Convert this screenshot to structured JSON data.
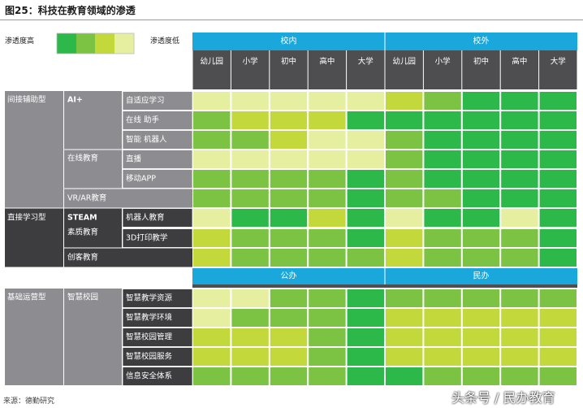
{
  "title": "图25：科技在教育领域的渗透",
  "legend": {
    "high_label": "渗透度高",
    "low_label": "渗透度低",
    "colors": [
      "#2db84a",
      "#7cc243",
      "#c3d83a",
      "#e6eea0"
    ]
  },
  "chart_data": {
    "type": "heatmap",
    "title": "图25：科技在教育领域的渗透",
    "scale": {
      "levels": 4,
      "1": "渗透度高",
      "4": "渗透度低"
    },
    "level_colors": {
      "1": "#2db84a",
      "2": "#7cc243",
      "3": "#c3d83a",
      "4": "#e6eea0"
    },
    "column_groups_top": [
      "校内",
      "校外"
    ],
    "column_groups_bottom": [
      "公办",
      "民办"
    ],
    "columns": [
      "幼儿园",
      "小学",
      "初中",
      "高中",
      "大学",
      "幼儿园",
      "小学",
      "初中",
      "高中",
      "大学"
    ],
    "rows": [
      {
        "category": "间接辅助型",
        "sub": "AI+",
        "item": "自适应学习",
        "values": [
          4,
          4,
          4,
          4,
          4,
          3,
          2,
          1,
          1,
          1
        ]
      },
      {
        "category": "间接辅助型",
        "sub": "AI+",
        "item": "在线助手",
        "values": [
          2,
          3,
          3,
          3,
          1,
          1,
          1,
          1,
          1,
          1
        ]
      },
      {
        "category": "间接辅助型",
        "sub": "AI+",
        "item": "智能机器人",
        "values": [
          2,
          2,
          3,
          4,
          4,
          2,
          1,
          1,
          1,
          1
        ]
      },
      {
        "category": "间接辅助型",
        "sub": "在线教育",
        "item": "直播",
        "values": [
          4,
          4,
          4,
          4,
          4,
          2,
          1,
          1,
          1,
          1
        ]
      },
      {
        "category": "间接辅助型",
        "sub": "在线教育",
        "item": "移动APP",
        "values": [
          2,
          2,
          2,
          2,
          1,
          2,
          1,
          1,
          1,
          1
        ]
      },
      {
        "category": "间接辅助型",
        "sub": "VR/AR教育",
        "item": "",
        "values": [
          2,
          2,
          2,
          2,
          1,
          2,
          2,
          1,
          1,
          1
        ]
      },
      {
        "category": "直接学习型",
        "sub": "STEAM 素质教育",
        "item": "机器人教育",
        "values": [
          4,
          1,
          1,
          3,
          1,
          4,
          1,
          1,
          4,
          1
        ]
      },
      {
        "category": "直接学习型",
        "sub": "STEAM 素质教育",
        "item": "3D打印教学",
        "values": [
          3,
          2,
          2,
          2,
          1,
          3,
          2,
          2,
          2,
          1
        ]
      },
      {
        "category": "直接学习型",
        "sub": "创客教育",
        "item": "",
        "values": [
          3,
          2,
          2,
          2,
          2,
          3,
          2,
          2,
          2,
          1
        ]
      },
      {
        "category": "基础运营型",
        "sub": "智慧校园",
        "item": "智慧教学资源",
        "values": [
          4,
          4,
          2,
          2,
          1,
          2,
          2,
          2,
          2,
          2
        ]
      },
      {
        "category": "基础运营型",
        "sub": "智慧校园",
        "item": "智慧教学环境",
        "values": [
          4,
          2,
          2,
          2,
          1,
          3,
          3,
          3,
          3,
          3
        ]
      },
      {
        "category": "基础运营型",
        "sub": "智慧校园",
        "item": "智慧校园管理",
        "values": [
          3,
          3,
          3,
          2,
          1,
          3,
          3,
          3,
          3,
          3
        ]
      },
      {
        "category": "基础运营型",
        "sub": "智慧校园",
        "item": "智慧校园服务",
        "values": [
          3,
          3,
          3,
          2,
          1,
          3,
          3,
          3,
          3,
          3
        ]
      },
      {
        "category": "基础运营型",
        "sub": "智慧校园",
        "item": "信息安全体系",
        "values": [
          2,
          2,
          2,
          2,
          1,
          1,
          2,
          2,
          2,
          2
        ]
      }
    ],
    "row_headers": {
      "categories": [
        "间接辅助型",
        "直接学习型",
        "基础运营型"
      ],
      "subs": [
        "AI+",
        "在线教育",
        "VR/AR教育",
        "STEAM",
        "素质教育",
        "创客教育",
        "智慧校园"
      ],
      "items": [
        "自适应学习",
        "在线 助手",
        "智能 机器人",
        "直播",
        "移动APP",
        "机器人教育",
        "3D打印教学",
        "智慧教学资源",
        "智慧教学环境",
        "智慧校园管理",
        "智慧校园服务",
        "信息安全体系"
      ]
    }
  },
  "source": "来源：德勤研究",
  "watermark": "头条号 / 民办教育"
}
